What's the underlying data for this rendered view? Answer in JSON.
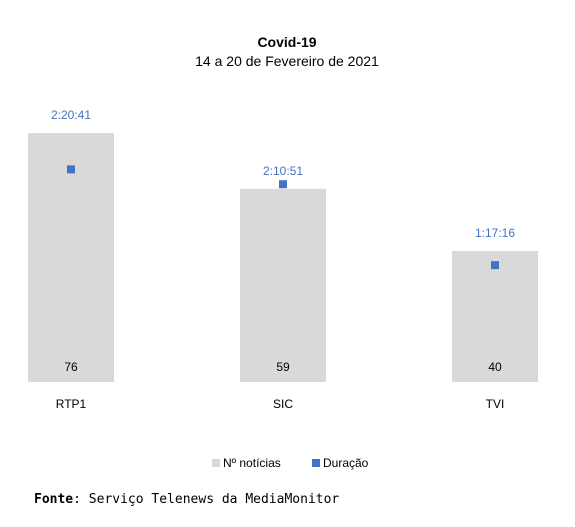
{
  "chart_data": {
    "type": "bar",
    "title": "Covid-19",
    "subtitle": "14 a 20 de Fevereiro de 2021",
    "categories": [
      "RTP1",
      "SIC",
      "TVI"
    ],
    "series": [
      {
        "name": "Nº notícias",
        "kind": "bar",
        "values": [
          76,
          59,
          40
        ],
        "labels": [
          "76",
          "59",
          "40"
        ],
        "color": "#d9d9d9"
      },
      {
        "name": "Duração",
        "kind": "marker",
        "values_seconds": [
          8441,
          7851,
          4636
        ],
        "labels": [
          "2:20:41",
          "2:10:51",
          "1:17:16"
        ],
        "color": "#4472c4"
      }
    ],
    "ylim": [
      0,
      80
    ],
    "duration_axis_max_seconds": 10400,
    "grid": false,
    "legend_position": "bottom"
  },
  "source": {
    "label": "Fonte",
    "text": ": Serviço Telenews da MediaMonitor"
  },
  "colors": {
    "bar": "#d9d9d9",
    "marker": "#4472c4",
    "duration_label": "#4472c4",
    "text": "#000000"
  }
}
